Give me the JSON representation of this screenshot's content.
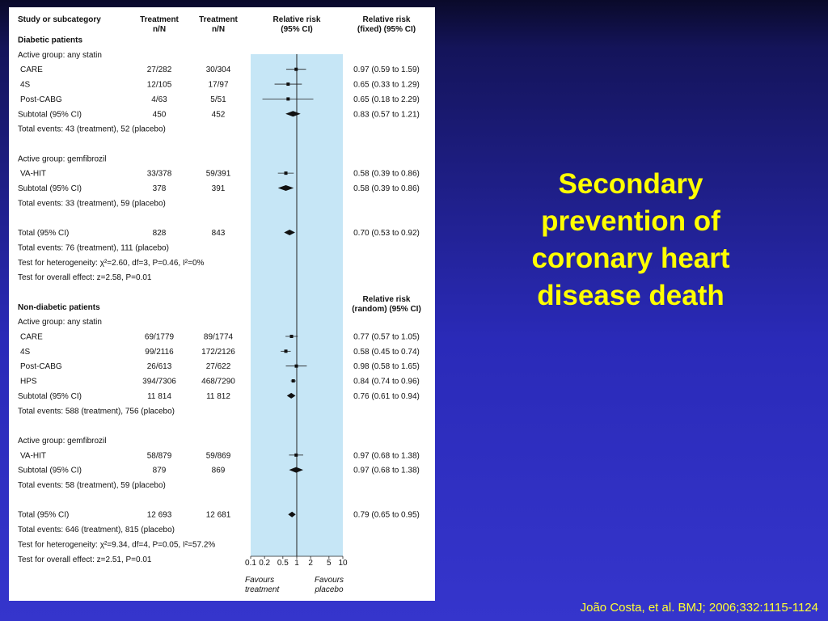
{
  "slide": {
    "title": "Secondary prevention of coronary heart disease death",
    "citation": "João Costa, et al. BMJ; 2006;332:1115-1124"
  },
  "chart_data": {
    "type": "forest",
    "columns": {
      "study": "Study or subcategory",
      "treatment": [
        "Treatment",
        "n/N"
      ],
      "control": [
        "Treatment",
        "n/N"
      ],
      "rr_plot": [
        "Relative risk",
        "(95% CI)"
      ],
      "rr_fixed": [
        "Relative risk",
        "(fixed) (95% CI)"
      ],
      "rr_random": [
        "Relative risk",
        "(random) (95% CI)"
      ]
    },
    "x_axis": {
      "scale": "log",
      "ticks": [
        "0.1",
        "0.2",
        "0.5",
        "1",
        "2",
        "5",
        "10"
      ],
      "range": [
        0.1,
        10
      ],
      "left_label": [
        "Favours",
        "treatment"
      ],
      "right_label": [
        "Favours",
        "placebo"
      ]
    },
    "rows": [
      {
        "label": "Diabetic patients",
        "kind": "section"
      },
      {
        "label": "Active group: any statin",
        "kind": "note"
      },
      {
        "label": "CARE",
        "kind": "study",
        "t": "27/282",
        "c": "30/304",
        "rr": 0.97,
        "lo": 0.59,
        "hi": 1.59,
        "text": "0.97 (0.59 to 1.59)"
      },
      {
        "label": "4S",
        "kind": "study",
        "t": "12/105",
        "c": "17/97",
        "rr": 0.65,
        "lo": 0.33,
        "hi": 1.29,
        "text": "0.65 (0.33 to 1.29)"
      },
      {
        "label": "Post-CABG",
        "kind": "study",
        "t": "4/63",
        "c": "5/51",
        "rr": 0.65,
        "lo": 0.18,
        "hi": 2.29,
        "text": "0.65 (0.18 to 2.29)"
      },
      {
        "label": "Subtotal (95% CI)",
        "kind": "diamond",
        "t": "450",
        "c": "452",
        "rr": 0.83,
        "lo": 0.57,
        "hi": 1.21,
        "text": "0.83 (0.57 to 1.21)"
      },
      {
        "label": "Total events: 43 (treatment), 52 (placebo)",
        "kind": "note"
      },
      {
        "kind": "blank"
      },
      {
        "label": "Active group: gemfibrozil",
        "kind": "note"
      },
      {
        "label": "VA-HIT",
        "kind": "study",
        "t": "33/378",
        "c": "59/391",
        "rr": 0.58,
        "lo": 0.39,
        "hi": 0.86,
        "text": "0.58 (0.39 to 0.86)"
      },
      {
        "label": "Subtotal (95% CI)",
        "kind": "diamond",
        "t": "378",
        "c": "391",
        "rr": 0.58,
        "lo": 0.39,
        "hi": 0.86,
        "text": "0.58 (0.39 to 0.86)"
      },
      {
        "label": "Total events: 33 (treatment), 59 (placebo)",
        "kind": "note"
      },
      {
        "kind": "blank"
      },
      {
        "label": "Total (95% CI)",
        "kind": "diamond",
        "t": "828",
        "c": "843",
        "rr": 0.7,
        "lo": 0.53,
        "hi": 0.92,
        "text": "0.70 (0.53 to 0.92)"
      },
      {
        "label": "Total events: 76 (treatment), 111 (placebo)",
        "kind": "note"
      },
      {
        "label": "Test for heterogeneity: χ²=2.60, df=3, P=0.46, I²=0%",
        "kind": "note"
      },
      {
        "label": "Test for overall effect: z=2.58, P=0.01",
        "kind": "note"
      },
      {
        "kind": "blank"
      },
      {
        "label": "Non-diabetic patients",
        "kind": "section"
      },
      {
        "label": "Active group: any statin",
        "kind": "note"
      },
      {
        "label": "CARE",
        "kind": "study",
        "t": "69/1779",
        "c": "89/1774",
        "rr": 0.77,
        "lo": 0.57,
        "hi": 1.05,
        "text": "0.77 (0.57 to 1.05)"
      },
      {
        "label": "4S",
        "kind": "study",
        "t": "99/2116",
        "c": "172/2126",
        "rr": 0.58,
        "lo": 0.45,
        "hi": 0.74,
        "text": "0.58 (0.45 to 0.74)"
      },
      {
        "label": "Post-CABG",
        "kind": "study",
        "t": "26/613",
        "c": "27/622",
        "rr": 0.98,
        "lo": 0.58,
        "hi": 1.65,
        "text": "0.98 (0.58 to 1.65)"
      },
      {
        "label": "HPS",
        "kind": "study",
        "t": "394/7306",
        "c": "468/7290",
        "rr": 0.84,
        "lo": 0.74,
        "hi": 0.96,
        "text": "0.84 (0.74 to 0.96)"
      },
      {
        "label": "Subtotal (95% CI)",
        "kind": "diamond",
        "t": "11 814",
        "c": "11 812",
        "rr": 0.76,
        "lo": 0.61,
        "hi": 0.94,
        "text": "0.76 (0.61 to 0.94)"
      },
      {
        "label": "Total events: 588 (treatment), 756 (placebo)",
        "kind": "note"
      },
      {
        "kind": "blank"
      },
      {
        "label": "Active group: gemfibrozil",
        "kind": "note"
      },
      {
        "label": "VA-HIT",
        "kind": "study",
        "t": "58/879",
        "c": "59/869",
        "rr": 0.97,
        "lo": 0.68,
        "hi": 1.38,
        "text": "0.97 (0.68 to 1.38)"
      },
      {
        "label": "Subtotal (95% CI)",
        "kind": "diamond",
        "t": "879",
        "c": "869",
        "rr": 0.97,
        "lo": 0.68,
        "hi": 1.38,
        "text": "0.97 (0.68 to 1.38)"
      },
      {
        "label": "Total events: 58 (treatment), 59 (placebo)",
        "kind": "note"
      },
      {
        "kind": "blank"
      },
      {
        "label": "Total (95% CI)",
        "kind": "diamond",
        "t": "12 693",
        "c": "12 681",
        "rr": 0.79,
        "lo": 0.65,
        "hi": 0.95,
        "text": "0.79 (0.65 to 0.95)"
      },
      {
        "label": "Total events: 646 (treatment), 815 (placebo)",
        "kind": "note"
      },
      {
        "label": "Test for heterogeneity: χ²=9.34, df=4, P=0.05, I²=57.2%",
        "kind": "note"
      },
      {
        "label": "Test for overall effect: z=2.51, P=0.01",
        "kind": "note"
      }
    ]
  }
}
